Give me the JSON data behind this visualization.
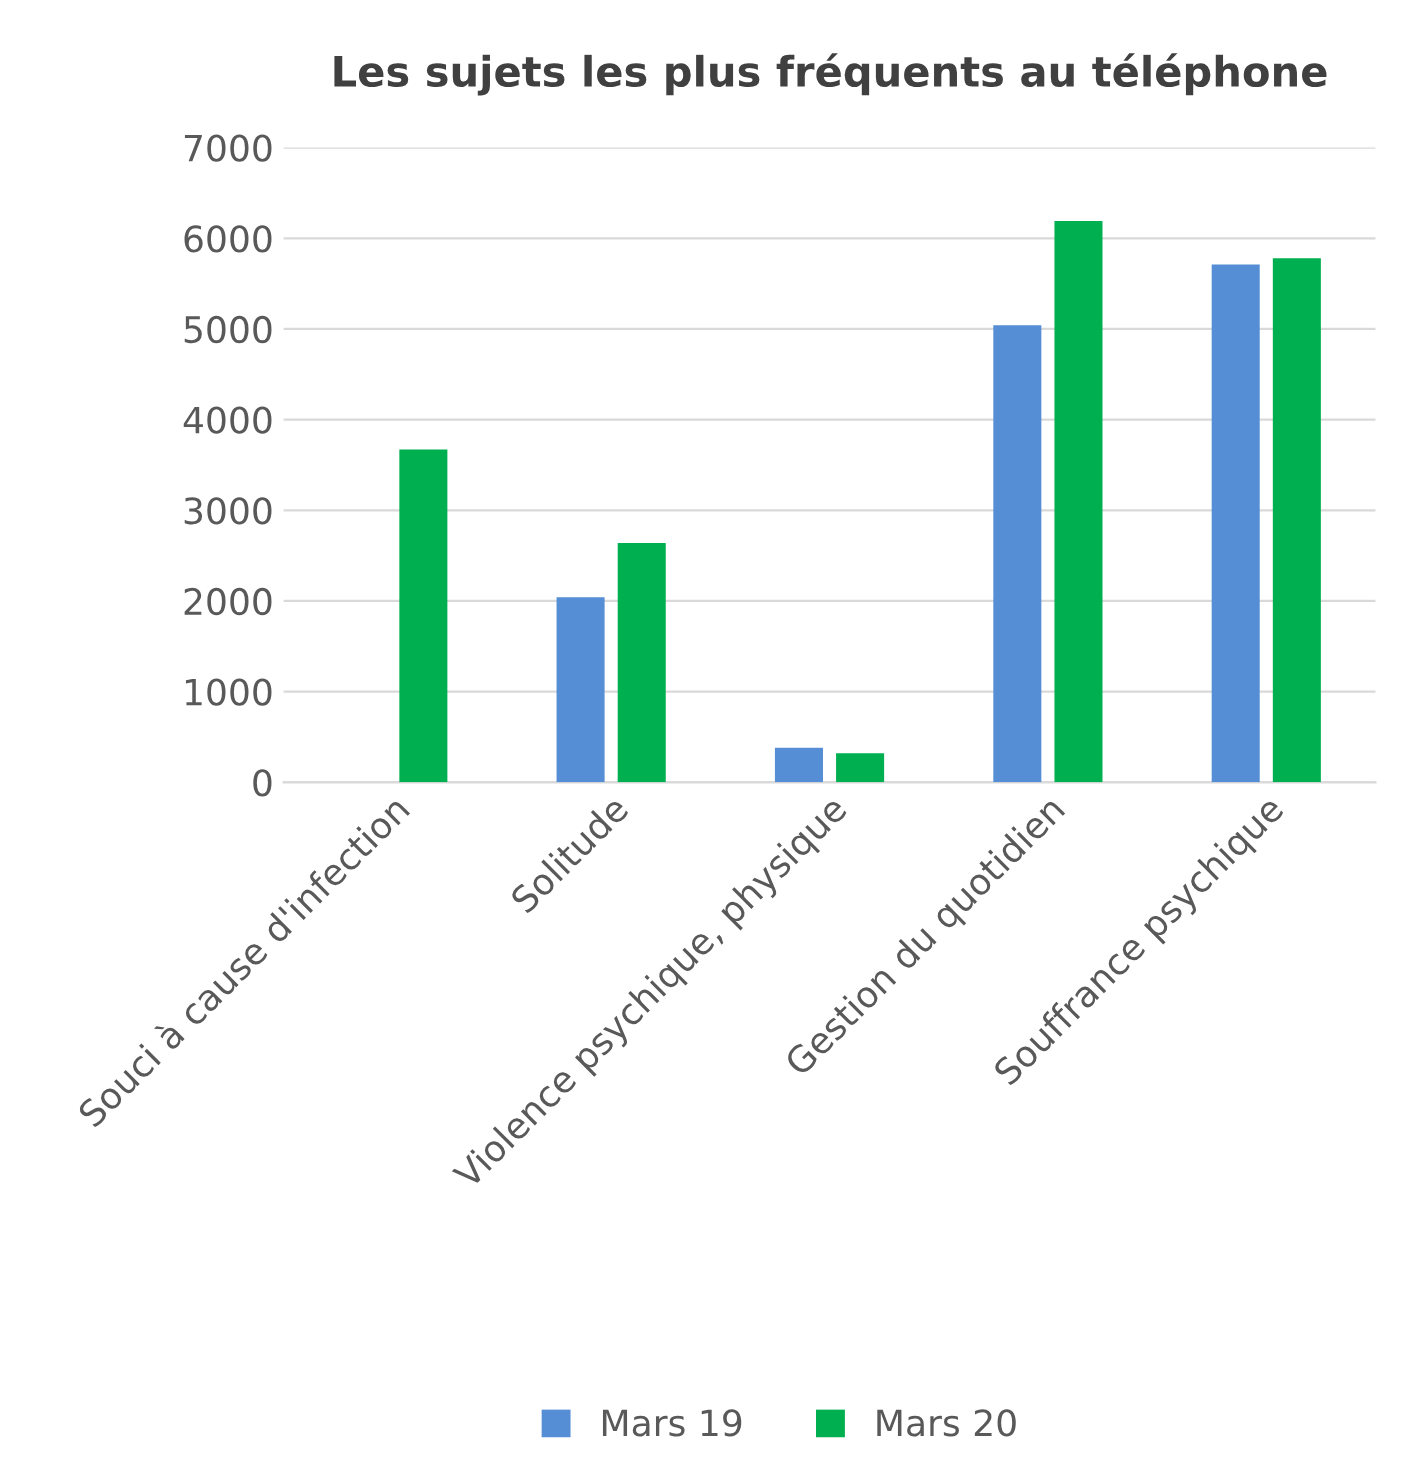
{
  "chart_data": {
    "type": "bar",
    "title": "Les sujets les plus fréquents au téléphone",
    "categories": [
      "Souci à cause d'infection",
      "Solitude",
      "Violence psychique, physique",
      "Gestion du quotidien",
      "Souffrance psychique"
    ],
    "series": [
      {
        "name": "Mars 19",
        "color": "#558ed5",
        "values": [
          null,
          2040,
          380,
          5040,
          5710
        ]
      },
      {
        "name": "Mars 20",
        "color": "#00b050",
        "values": [
          3670,
          2640,
          320,
          6190,
          5780
        ]
      }
    ],
    "ylim": [
      0,
      7000
    ],
    "yticks": [
      0,
      1000,
      2000,
      3000,
      4000,
      5000,
      6000,
      7000
    ],
    "grid": "y",
    "legend": "bottom"
  }
}
